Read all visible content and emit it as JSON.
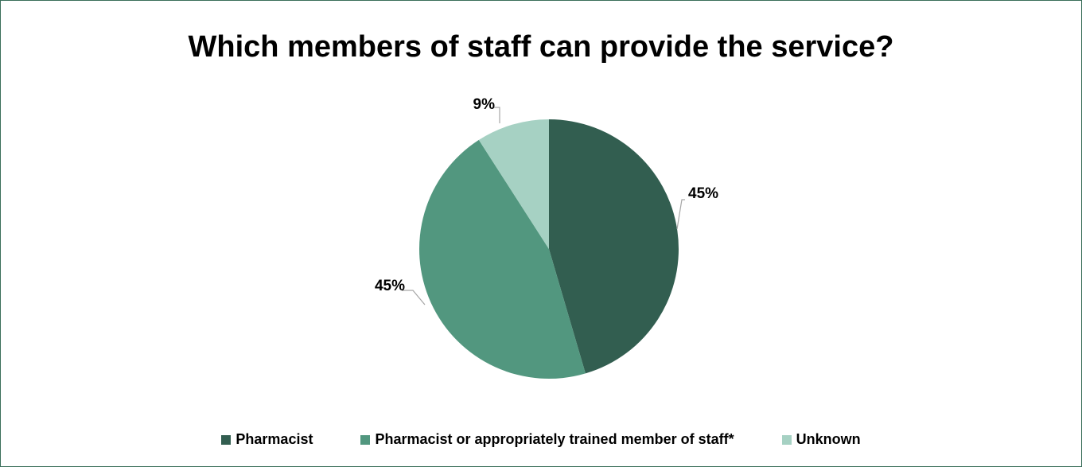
{
  "chart_data": {
    "type": "pie",
    "title": "Which members of staff can provide the service?",
    "categories": [
      "Pharmacist",
      "Pharmacist or appropriately trained member of staff*",
      "Unknown"
    ],
    "values": [
      45,
      45,
      9
    ],
    "labels": [
      "45%",
      "45%",
      "9%"
    ],
    "colors": [
      "#325e50",
      "#52977f",
      "#a6d1c3"
    ],
    "legend_position": "bottom"
  }
}
